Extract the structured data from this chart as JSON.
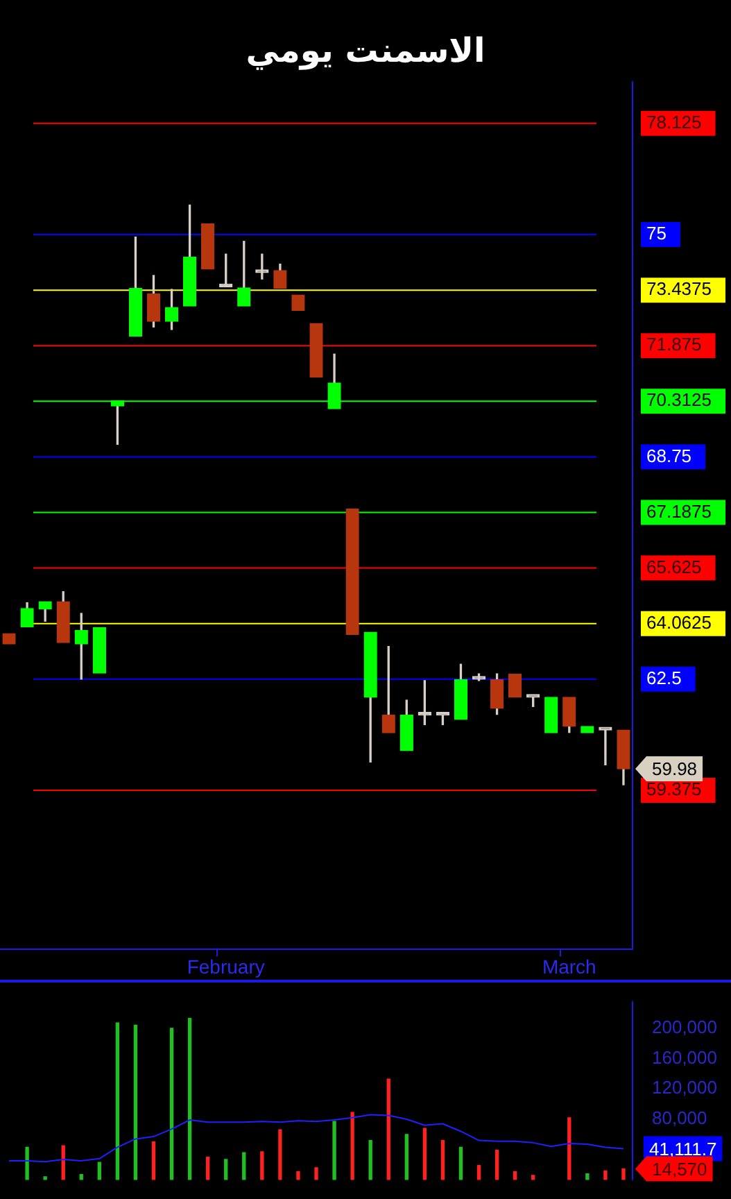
{
  "chart_data": [
    {
      "type": "candlestick",
      "title": "الاسمنت يومي",
      "categories": [
        null,
        null,
        null,
        null,
        null,
        null,
        null,
        null,
        null,
        null,
        null,
        null,
        "February",
        null,
        null,
        null,
        null,
        null,
        null,
        null,
        null,
        null,
        null,
        null,
        null,
        null,
        null,
        null,
        null,
        null,
        null,
        "March",
        null,
        null,
        null
      ],
      "ohlc": [
        [
          63.78,
          63.78,
          63.49,
          63.49
        ],
        [
          63.97,
          64.65,
          63.97,
          64.49
        ],
        [
          64.47,
          64.68,
          64.13,
          64.68
        ],
        [
          64.68,
          64.96,
          63.53,
          63.53
        ],
        [
          63.49,
          64.35,
          62.5,
          63.87
        ],
        [
          62.67,
          63.95,
          62.67,
          63.95
        ],
        [
          70.18,
          70.33,
          69.1,
          70.33
        ],
        [
          72.14,
          74.93,
          72.14,
          73.49
        ],
        [
          73.33,
          73.85,
          72.4,
          72.56
        ],
        [
          72.56,
          73.46,
          72.33,
          72.95
        ],
        [
          72.99,
          75.83,
          72.99,
          74.37
        ],
        [
          75.3,
          75.3,
          74.03,
          74.03
        ],
        [
          73.53,
          74.45,
          73.53,
          73.53
        ],
        [
          72.99,
          74.81,
          72.99,
          73.5
        ],
        [
          73.93,
          74.45,
          73.75,
          73.93
        ],
        [
          73.99,
          74.17,
          73.49,
          73.49
        ],
        [
          73.3,
          73.3,
          72.87,
          72.87
        ],
        [
          72.5,
          72.5,
          70.99,
          70.99
        ],
        [
          70.1,
          71.64,
          70.1,
          70.83
        ],
        [
          67.28,
          67.28,
          63.76,
          63.76
        ],
        [
          61.99,
          63.82,
          60.17,
          63.82
        ],
        [
          61.49,
          63.42,
          60.99,
          60.99
        ],
        [
          60.49,
          61.91,
          60.49,
          61.49
        ],
        [
          61.49,
          62.46,
          61.22,
          61.49
        ],
        [
          61.49,
          61.49,
          61.22,
          61.49
        ],
        [
          61.37,
          62.92,
          61.37,
          62.49
        ],
        [
          62.5,
          62.65,
          62.46,
          62.5
        ],
        [
          62.49,
          62.65,
          61.51,
          61.68
        ],
        [
          62.64,
          62.64,
          61.99,
          61.99
        ],
        [
          61.99,
          61.99,
          61.73,
          61.99
        ],
        [
          60.99,
          61.99,
          60.99,
          61.99
        ],
        [
          61.99,
          61.99,
          61.0,
          61.18
        ],
        [
          60.99,
          61.17,
          60.99,
          61.17
        ],
        [
          61.07,
          61.07,
          60.09,
          61.07
        ],
        [
          61.07,
          61.07,
          59.53,
          59.98
        ]
      ],
      "colors": [
        "#b8360e",
        "#00ff00",
        "#00ff00",
        "#b8360e",
        "#00ff00",
        "#00ff00",
        "#00ff00",
        "#00ff00",
        "#b8360e",
        "#00ff00",
        "#00ff00",
        "#b8360e",
        "#d8d0c8",
        "#00ff00",
        "#d8d0c8",
        "#b8360e",
        "#b8360e",
        "#b8360e",
        "#00ff00",
        "#b8360e",
        "#00ff00",
        "#b8360e",
        "#00ff00",
        "#d8d0c8",
        "#d8d0c8",
        "#00ff00",
        "#d8d0c8",
        "#b8360e",
        "#b8360e",
        "#d8d0c8",
        "#00ff00",
        "#b8360e",
        "#00ff00",
        "#d8d0c8",
        "#b8360e"
      ],
      "ylim": [
        54.9,
        79.3
      ],
      "yticks": [
        59.375,
        62.5,
        64.0625,
        65.625,
        67.1875,
        68.75,
        70.3125,
        71.875,
        73.4375,
        75,
        78.125
      ],
      "ref_lines": [
        {
          "axis": "y",
          "value": 59.375,
          "color": "#ff0000"
        },
        {
          "axis": "y",
          "value": 62.5,
          "color": "#0000ff"
        },
        {
          "axis": "y",
          "value": 64.0625,
          "color": "#ffff00"
        },
        {
          "axis": "y",
          "value": 65.625,
          "color": "#ff0000"
        },
        {
          "axis": "y",
          "value": 67.1875,
          "color": "#00ff00"
        },
        {
          "axis": "y",
          "value": 68.75,
          "color": "#0000ff"
        },
        {
          "axis": "y",
          "value": 70.3125,
          "color": "#00ff00"
        },
        {
          "axis": "y",
          "value": 71.875,
          "color": "#ff0000"
        },
        {
          "axis": "y",
          "value": 73.4375,
          "color": "#ffff00"
        },
        {
          "axis": "y",
          "value": 75,
          "color": "#0000ff"
        },
        {
          "axis": "y",
          "value": 78.125,
          "color": "#ff0000"
        }
      ],
      "annotations": [
        "59.98"
      ]
    },
    {
      "type": "bar",
      "categories": [
        null,
        null,
        null,
        null,
        null,
        null,
        null,
        null,
        null,
        null,
        null,
        null,
        null,
        null,
        null,
        null,
        null,
        null,
        null,
        null,
        null,
        null,
        null,
        null,
        null,
        null,
        null,
        null,
        null,
        null,
        null,
        null,
        null,
        null,
        null
      ],
      "series": [
        {
          "type": "bar",
          "colors": [
            "#20c020",
            "#20c020",
            "#20c020",
            "#ff2020",
            "#20c020",
            "#20c020",
            "#20c020",
            "#20c020",
            "#ff2020",
            "#20c020",
            "#20c020",
            "#ff2020",
            "#20c020",
            "#20c020",
            "#ff2020",
            "#ff2020",
            "#ff2020",
            "#ff2020",
            "#20c020",
            "#ff2020",
            "#20c020",
            "#ff2020",
            "#20c020",
            "#ff2020",
            "#ff2020",
            "#20c020",
            "#ff2020",
            "#ff2020",
            "#ff2020",
            "#ff2020",
            "#20c020",
            "#ff2020",
            "#20c020",
            "#ff2020",
            "#ff2020"
          ],
          "values": [
            null,
            43000,
            4000,
            45000,
            7000,
            23000,
            207000,
            204000,
            50000,
            200000,
            213000,
            30000,
            27000,
            36000,
            37000,
            66000,
            11000,
            16000,
            77000,
            89000,
            52000,
            133000,
            60000,
            68000,
            52000,
            43000,
            19000,
            39000,
            11000,
            6000,
            null,
            82000,
            8000,
            12000,
            14570
          ]
        },
        {
          "type": "line",
          "color": "#2020ff",
          "values": [
            25000,
            25000,
            24000,
            27000,
            25000,
            28000,
            43000,
            54000,
            57000,
            67000,
            79000,
            76000,
            76000,
            76000,
            77000,
            76000,
            78000,
            77000,
            79000,
            82000,
            86000,
            85000,
            80000,
            72000,
            74000,
            64000,
            52000,
            51000,
            51000,
            49000,
            44000,
            48000,
            47000,
            43000,
            41111.7
          ]
        }
      ],
      "ylim": [
        0,
        235000
      ],
      "yticks": [
        {
          "value": 80000,
          "label": "80,000"
        },
        {
          "value": 120000,
          "label": "120,000"
        },
        {
          "value": 160000,
          "label": "160,000"
        },
        {
          "value": 200000,
          "label": "200,000"
        }
      ],
      "tick_labels": "y",
      "annotations": [
        "41,111.7",
        "14,570"
      ]
    }
  ]
}
